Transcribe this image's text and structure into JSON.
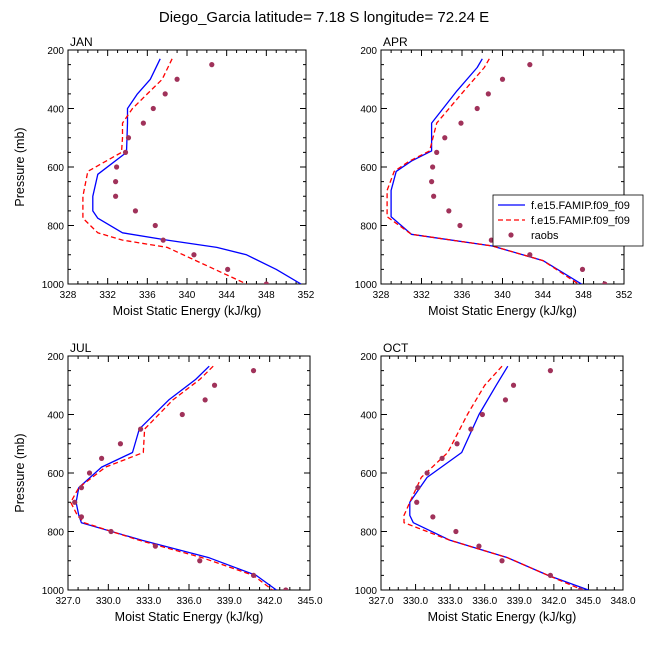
{
  "figure": {
    "title": "Diego_Garcia  latitude= 7.18 S longitude= 72.24 E"
  },
  "colors": {
    "series1": "#0000ff",
    "series2": "#ff0000",
    "raobs": "#a0325a",
    "axes": "#000000"
  },
  "legend": {
    "panel": 1,
    "entries": [
      {
        "label": "f.e15.FAMIP.f09_f09",
        "style": "solid-line",
        "color": "#0000ff"
      },
      {
        "label": "f.e15.FAMIP.f09_f09",
        "style": "dashed-line",
        "color": "#ff0000"
      },
      {
        "label": "raobs",
        "style": "marker",
        "color": "#a0325a"
      }
    ]
  },
  "chart_data": [
    {
      "type": "line",
      "panel_label": "JAN",
      "xlabel": "Moist Static Energy (kJ/kg)",
      "ylabel": "Pressure (mb)",
      "xlim": [
        328,
        352
      ],
      "xticks": [
        328,
        332,
        336,
        340,
        344,
        348,
        352
      ],
      "xtick_labels": [
        "328",
        "332",
        "336",
        "340",
        "344",
        "348",
        "352"
      ],
      "ylim": [
        200,
        1000
      ],
      "y_inverted": true,
      "yticks": [
        200,
        400,
        600,
        800,
        1000
      ],
      "ytick_labels": [
        "200",
        "400",
        "600",
        "800",
        "1000"
      ],
      "series": [
        {
          "style": "solid",
          "color": "#0000ff",
          "x": [
            337.3,
            336.3,
            335.0,
            334.0,
            334.0,
            333.9,
            331.0,
            330.5,
            330.5,
            331.0,
            333.5,
            338.0,
            343.0,
            346.0,
            349.0,
            351.5
          ],
          "y": [
            230,
            300,
            350,
            400,
            450,
            550,
            625,
            700,
            750,
            775,
            825,
            850,
            875,
            900,
            950,
            1000
          ]
        },
        {
          "style": "dashed",
          "color": "#ff0000",
          "x": [
            338.5,
            337.5,
            336.0,
            334.5,
            333.5,
            333.5,
            333.4,
            330.0,
            329.5,
            329.5,
            331.0,
            333.5,
            338.0,
            346.0
          ],
          "y": [
            230,
            300,
            350,
            400,
            450,
            500,
            550,
            615,
            700,
            775,
            825,
            850,
            875,
            1000
          ]
        },
        {
          "style": "marker",
          "color": "#a0325a",
          "x": [
            342.5,
            339.0,
            337.8,
            336.6,
            335.6,
            334.1,
            333.8,
            332.9,
            332.8,
            332.8,
            334.8,
            336.8,
            337.6,
            340.7,
            344.1,
            348.0
          ],
          "y": [
            250,
            300,
            350,
            400,
            450,
            500,
            550,
            600,
            650,
            700,
            750,
            800,
            850,
            900,
            950,
            1000
          ]
        }
      ]
    },
    {
      "type": "line",
      "panel_label": "APR",
      "xlabel": "Moist Static Energy (kJ/kg)",
      "ylabel": "",
      "xlim": [
        328,
        352
      ],
      "xticks": [
        328,
        332,
        336,
        340,
        344,
        348,
        352
      ],
      "xtick_labels": [
        "328",
        "332",
        "336",
        "340",
        "344",
        "348",
        "352"
      ],
      "ylim": [
        200,
        1000
      ],
      "y_inverted": true,
      "yticks": [
        200,
        400,
        600,
        800,
        1000
      ],
      "ytick_labels": [
        "200",
        "400",
        "600",
        "800",
        "1000"
      ],
      "series": [
        {
          "style": "solid",
          "color": "#0000ff",
          "x": [
            338.0,
            337.5,
            335.5,
            333.0,
            333.0,
            331.0,
            329.5,
            329.0,
            329.0,
            329.0,
            331.0,
            339.0,
            344.0,
            347.8
          ],
          "y": [
            230,
            260,
            340,
            450,
            545,
            580,
            615,
            680,
            745,
            770,
            830,
            870,
            920,
            1000
          ]
        },
        {
          "style": "dashed",
          "color": "#ff0000",
          "x": [
            338.7,
            338.2,
            336.2,
            333.5,
            332.8,
            330.8,
            329.3,
            328.6,
            328.6,
            331.0,
            339.0,
            344.0,
            347.5
          ],
          "y": [
            230,
            260,
            340,
            450,
            545,
            580,
            615,
            680,
            770,
            830,
            870,
            920,
            1000
          ]
        },
        {
          "style": "marker",
          "color": "#a0325a",
          "x": [
            342.7,
            340.0,
            338.6,
            337.5,
            335.9,
            334.3,
            333.5,
            333.1,
            333.0,
            333.2,
            334.7,
            335.8,
            338.9,
            342.7,
            347.9,
            350.1
          ],
          "y": [
            250,
            300,
            350,
            400,
            450,
            500,
            550,
            600,
            650,
            700,
            750,
            800,
            850,
            900,
            950,
            1000
          ]
        }
      ]
    },
    {
      "type": "line",
      "panel_label": "JUL",
      "xlabel": "Moist Static Energy (kJ/kg)",
      "ylabel": "Pressure (mb)",
      "xlim": [
        327.0,
        345.0
      ],
      "xticks": [
        327.0,
        330.0,
        333.0,
        336.0,
        339.0,
        342.0,
        345.0
      ],
      "xtick_labels": [
        "327.0",
        "330.0",
        "333.0",
        "336.0",
        "339.0",
        "342.0",
        "345.0"
      ],
      "ylim": [
        200,
        1000
      ],
      "y_inverted": true,
      "yticks": [
        200,
        400,
        600,
        800,
        1000
      ],
      "ytick_labels": [
        "200",
        "400",
        "600",
        "800",
        "1000"
      ],
      "series": [
        {
          "style": "solid",
          "color": "#0000ff",
          "x": [
            337.5,
            336.5,
            334.5,
            332.3,
            331.8,
            329.5,
            327.8,
            327.6,
            327.8,
            328.0,
            332.5,
            337.5,
            341.0,
            342.5
          ],
          "y": [
            235,
            280,
            350,
            450,
            530,
            580,
            650,
            700,
            745,
            770,
            830,
            890,
            950,
            1000
          ]
        },
        {
          "style": "dashed",
          "color": "#ff0000",
          "x": [
            337.8,
            336.8,
            334.8,
            332.7,
            332.6,
            329.8,
            327.8,
            327.2,
            327.7,
            328.2,
            332.3,
            337.0,
            340.8,
            342.2
          ],
          "y": [
            235,
            280,
            350,
            450,
            530,
            580,
            650,
            700,
            745,
            770,
            830,
            890,
            950,
            1000
          ]
        },
        {
          "style": "marker",
          "color": "#a0325a",
          "x": [
            340.8,
            337.9,
            337.2,
            335.5,
            332.4,
            330.9,
            329.5,
            328.6,
            328.0,
            327.5,
            328.0,
            330.2,
            333.5,
            336.8,
            340.8,
            343.2
          ],
          "y": [
            250,
            300,
            350,
            400,
            450,
            500,
            550,
            600,
            650,
            700,
            750,
            800,
            850,
            900,
            950,
            1000
          ]
        }
      ]
    },
    {
      "type": "line",
      "panel_label": "OCT",
      "xlabel": "Moist Static Energy (kJ/kg)",
      "ylabel": "",
      "xlim": [
        327.0,
        348.0
      ],
      "xticks": [
        327.0,
        330.0,
        333.0,
        336.0,
        339.0,
        342.0,
        345.0,
        348.0
      ],
      "xtick_labels": [
        "327.0",
        "330.0",
        "333.0",
        "336.0",
        "339.0",
        "342.0",
        "345.0",
        "348.0"
      ],
      "ylim": [
        200,
        1000
      ],
      "y_inverted": true,
      "yticks": [
        200,
        400,
        600,
        800,
        1000
      ],
      "ytick_labels": [
        "200",
        "400",
        "600",
        "800",
        "1000"
      ],
      "series": [
        {
          "style": "solid",
          "color": "#0000ff",
          "x": [
            338.0,
            337.0,
            335.5,
            334.0,
            334.0,
            331.0,
            329.5,
            329.5,
            329.8,
            333.0,
            338.0,
            341.5,
            345.0
          ],
          "y": [
            235,
            300,
            400,
            530,
            530,
            615,
            700,
            745,
            770,
            830,
            890,
            950,
            1000
          ]
        },
        {
          "style": "dashed",
          "color": "#ff0000",
          "x": [
            337.5,
            336.0,
            334.5,
            332.8,
            332.8,
            330.5,
            329.5,
            329.0,
            329.0,
            333.0,
            338.0,
            341.5,
            344.5
          ],
          "y": [
            235,
            300,
            400,
            530,
            530,
            615,
            700,
            745,
            770,
            830,
            890,
            950,
            1000
          ]
        },
        {
          "style": "marker",
          "color": "#a0325a",
          "x": [
            341.7,
            338.5,
            337.8,
            335.8,
            334.8,
            333.6,
            332.3,
            331.0,
            330.2,
            330.1,
            331.5,
            333.5,
            335.5,
            337.5,
            341.7,
            344.3
          ],
          "y": [
            250,
            300,
            350,
            400,
            450,
            500,
            550,
            600,
            650,
            700,
            750,
            800,
            850,
            900,
            950,
            1000
          ]
        }
      ]
    }
  ]
}
